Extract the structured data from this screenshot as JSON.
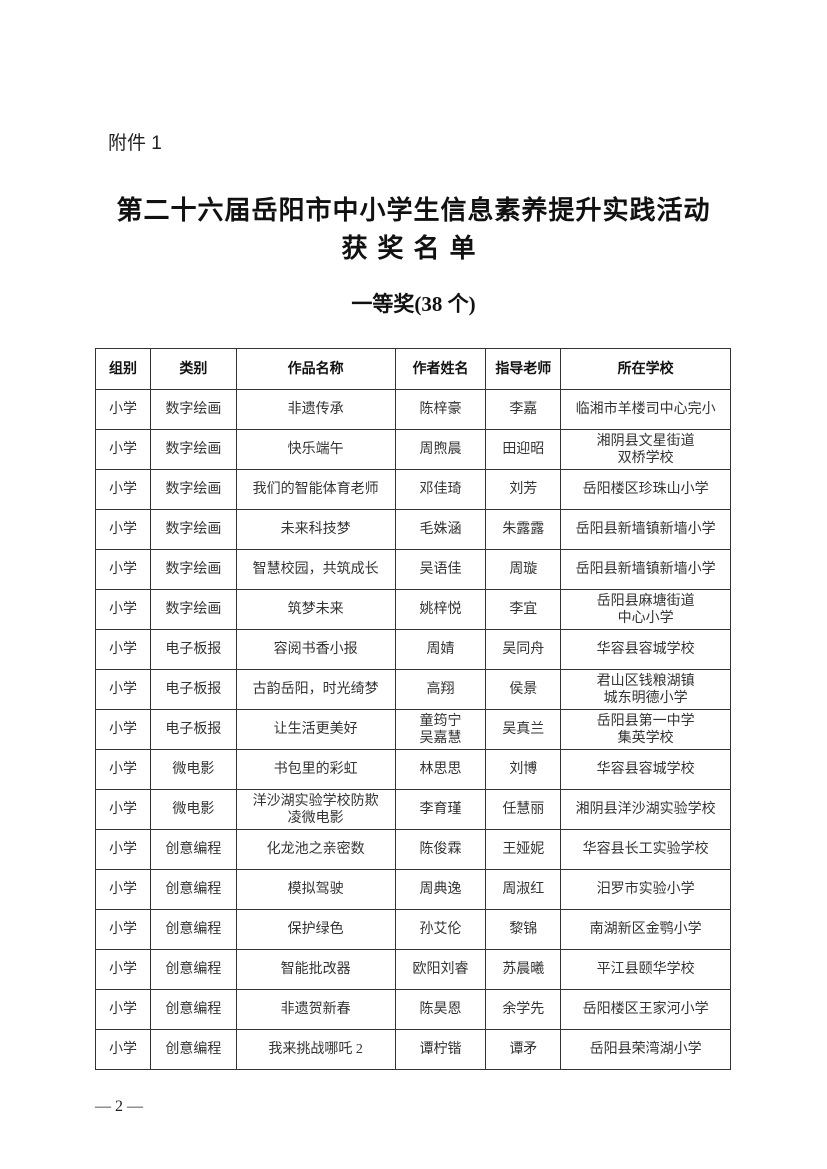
{
  "attachment_label": "附件 1",
  "title_line1": "第二十六届岳阳市中小学生信息素养提升实践活动",
  "title_line2": "获奖名单",
  "section_title": "一等奖(38 个)",
  "table": {
    "headers": [
      "组别",
      "类别",
      "作品名称",
      "作者姓名",
      "指导老师",
      "所在学校"
    ],
    "rows": [
      [
        "小学",
        "数字绘画",
        "非遗传承",
        "陈梓豪",
        "李嘉",
        "临湘市羊楼司中心完小"
      ],
      [
        "小学",
        "数字绘画",
        "快乐端午",
        "周煦晨",
        "田迎昭",
        "湘阴县文星街道\n双桥学校"
      ],
      [
        "小学",
        "数字绘画",
        "我们的智能体育老师",
        "邓佳琦",
        "刘芳",
        "岳阳楼区珍珠山小学"
      ],
      [
        "小学",
        "数字绘画",
        "未来科技梦",
        "毛姝涵",
        "朱露露",
        "岳阳县新墙镇新墙小学"
      ],
      [
        "小学",
        "数字绘画",
        "智慧校园，共筑成长",
        "吴语佳",
        "周璇",
        "岳阳县新墙镇新墙小学"
      ],
      [
        "小学",
        "数字绘画",
        "筑梦未来",
        "姚梓悦",
        "李宜",
        "岳阳县麻塘街道\n中心小学"
      ],
      [
        "小学",
        "电子板报",
        "容阅书香小报",
        "周婧",
        "吴同舟",
        "华容县容城学校"
      ],
      [
        "小学",
        "电子板报",
        "古韵岳阳，时光绮梦",
        "高翔",
        "侯景",
        "君山区钱粮湖镇\n城东明德小学"
      ],
      [
        "小学",
        "电子板报",
        "让生活更美好",
        "童筠宁\n吴嘉慧",
        "吴真兰",
        "岳阳县第一中学\n集英学校"
      ],
      [
        "小学",
        "微电影",
        "书包里的彩虹",
        "林思思",
        "刘博",
        "华容县容城学校"
      ],
      [
        "小学",
        "微电影",
        "洋沙湖实验学校防欺\n凌微电影",
        "李育瑾",
        "任慧丽",
        "湘阴县洋沙湖实验学校"
      ],
      [
        "小学",
        "创意编程",
        "化龙池之亲密数",
        "陈俊霖",
        "王娅妮",
        "华容县长工实验学校"
      ],
      [
        "小学",
        "创意编程",
        "模拟驾驶",
        "周典逸",
        "周淑红",
        "汨罗市实验小学"
      ],
      [
        "小学",
        "创意编程",
        "保护绿色",
        "孙艾伦",
        "黎锦",
        "南湖新区金鹗小学"
      ],
      [
        "小学",
        "创意编程",
        "智能批改器",
        "欧阳刘睿",
        "苏晨曦",
        "平江县颐华学校"
      ],
      [
        "小学",
        "创意编程",
        "非遗贺新春",
        "陈昊恩",
        "余学先",
        "岳阳楼区王家河小学"
      ],
      [
        "小学",
        "创意编程",
        "我来挑战哪吒 2",
        "谭柠锴",
        "谭矛",
        "岳阳县荣湾湖小学"
      ]
    ]
  },
  "page_number": "— 2 —"
}
